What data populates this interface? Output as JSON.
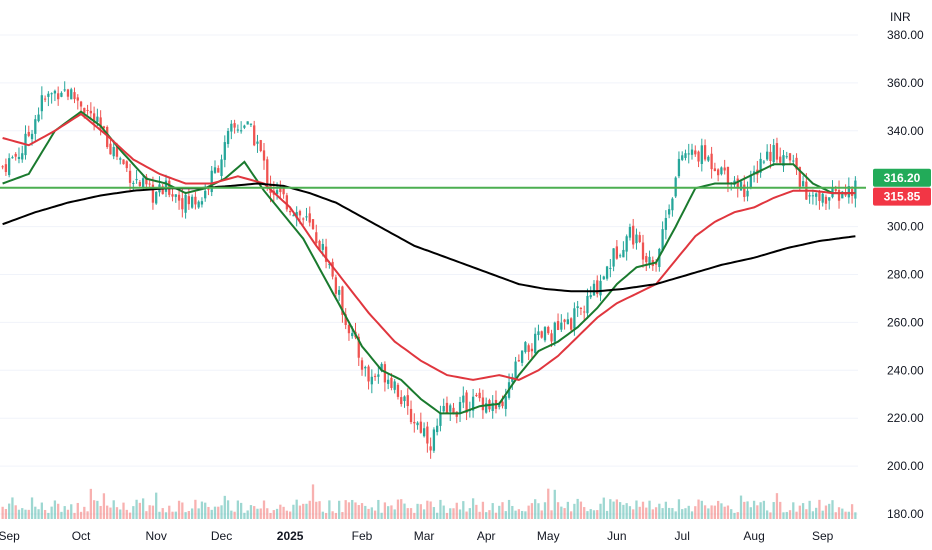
{
  "chart_data": {
    "type": "candlestick",
    "currency": "INR",
    "ylim": [
      175,
      385
    ],
    "y_ticks": [
      "180.00",
      "200.00",
      "220.00",
      "240.00",
      "260.00",
      "280.00",
      "300.00",
      "320.00",
      "340.00",
      "360.00",
      "380.00"
    ],
    "x_labels": [
      {
        "label": "Sep",
        "bar": 2,
        "bold": false
      },
      {
        "label": "Oct",
        "bar": 24,
        "bold": false
      },
      {
        "label": "Nov",
        "bar": 47,
        "bold": false
      },
      {
        "label": "Dec",
        "bar": 67,
        "bold": false
      },
      {
        "label": "2025",
        "bar": 88,
        "bold": true
      },
      {
        "label": "Feb",
        "bar": 110,
        "bold": false
      },
      {
        "label": "Mar",
        "bar": 129,
        "bold": false
      },
      {
        "label": "Apr",
        "bar": 148,
        "bold": false
      },
      {
        "label": "May",
        "bar": 167,
        "bold": false
      },
      {
        "label": "Jun",
        "bar": 188,
        "bold": false
      },
      {
        "label": "Jul",
        "bar": 208,
        "bold": false
      },
      {
        "label": "Aug",
        "bar": 230,
        "bold": false
      },
      {
        "label": "Sep",
        "bar": 251,
        "bold": false
      }
    ],
    "num_bars": 262,
    "price_path": [
      [
        0,
        325
      ],
      [
        6,
        332
      ],
      [
        12,
        352
      ],
      [
        18,
        358
      ],
      [
        24,
        352
      ],
      [
        30,
        340
      ],
      [
        34,
        332
      ],
      [
        40,
        320
      ],
      [
        46,
        313
      ],
      [
        51,
        316
      ],
      [
        56,
        310
      ],
      [
        61,
        312
      ],
      [
        66,
        326
      ],
      [
        70,
        340
      ],
      [
        74,
        343
      ],
      [
        78,
        335
      ],
      [
        82,
        316
      ],
      [
        87,
        310
      ],
      [
        93,
        302
      ],
      [
        99,
        288
      ],
      [
        103,
        270
      ],
      [
        108,
        250
      ],
      [
        112,
        236
      ],
      [
        116,
        240
      ],
      [
        120,
        235
      ],
      [
        124,
        222
      ],
      [
        129,
        215
      ],
      [
        131,
        210
      ],
      [
        135,
        222
      ],
      [
        140,
        225
      ],
      [
        146,
        228
      ],
      [
        150,
        225
      ],
      [
        153,
        222
      ],
      [
        156,
        238
      ],
      [
        160,
        248
      ],
      [
        166,
        255
      ],
      [
        172,
        258
      ],
      [
        178,
        266
      ],
      [
        183,
        278
      ],
      [
        188,
        290
      ],
      [
        192,
        298
      ],
      [
        196,
        290
      ],
      [
        200,
        286
      ],
      [
        204,
        310
      ],
      [
        208,
        330
      ],
      [
        214,
        330
      ],
      [
        219,
        325
      ],
      [
        225,
        318
      ],
      [
        228,
        315
      ],
      [
        232,
        328
      ],
      [
        236,
        332
      ],
      [
        240,
        328
      ],
      [
        243,
        324
      ],
      [
        246,
        312
      ],
      [
        249,
        311
      ],
      [
        253,
        312
      ],
      [
        258,
        314
      ],
      [
        261,
        316
      ]
    ],
    "current_price": 316.2,
    "horizontal_level": 316.2,
    "moving_averages": [
      {
        "period_label": "short",
        "color": "#1a7a2e",
        "points": [
          [
            0,
            318
          ],
          [
            8,
            322
          ],
          [
            16,
            340
          ],
          [
            24,
            348
          ],
          [
            30,
            342
          ],
          [
            36,
            332
          ],
          [
            44,
            320
          ],
          [
            50,
            318
          ],
          [
            56,
            314
          ],
          [
            62,
            316
          ],
          [
            68,
            320
          ],
          [
            74,
            327
          ],
          [
            80,
            315
          ],
          [
            86,
            305
          ],
          [
            92,
            295
          ],
          [
            98,
            280
          ],
          [
            104,
            265
          ],
          [
            110,
            250
          ],
          [
            116,
            240
          ],
          [
            122,
            236
          ],
          [
            128,
            228
          ],
          [
            134,
            222
          ],
          [
            140,
            222
          ],
          [
            146,
            225
          ],
          [
            152,
            226
          ],
          [
            158,
            238
          ],
          [
            164,
            248
          ],
          [
            170,
            252
          ],
          [
            176,
            258
          ],
          [
            182,
            266
          ],
          [
            188,
            276
          ],
          [
            194,
            283
          ],
          [
            200,
            285
          ],
          [
            206,
            300
          ],
          [
            212,
            316
          ],
          [
            218,
            318
          ],
          [
            224,
            318
          ],
          [
            230,
            322
          ],
          [
            236,
            326
          ],
          [
            242,
            326
          ],
          [
            248,
            318
          ],
          [
            254,
            314
          ],
          [
            261,
            314
          ]
        ]
      },
      {
        "period_label": "medium",
        "color": "#e0363e",
        "points": [
          [
            0,
            337
          ],
          [
            8,
            334
          ],
          [
            16,
            340
          ],
          [
            24,
            347
          ],
          [
            32,
            338
          ],
          [
            40,
            328
          ],
          [
            48,
            322
          ],
          [
            56,
            318
          ],
          [
            64,
            318
          ],
          [
            72,
            321
          ],
          [
            80,
            318
          ],
          [
            88,
            308
          ],
          [
            96,
            292
          ],
          [
            104,
            278
          ],
          [
            112,
            264
          ],
          [
            120,
            252
          ],
          [
            128,
            244
          ],
          [
            136,
            238
          ],
          [
            144,
            236
          ],
          [
            152,
            238
          ],
          [
            158,
            236
          ],
          [
            164,
            240
          ],
          [
            170,
            246
          ],
          [
            176,
            254
          ],
          [
            182,
            262
          ],
          [
            188,
            268
          ],
          [
            194,
            272
          ],
          [
            200,
            276
          ],
          [
            206,
            286
          ],
          [
            212,
            296
          ],
          [
            218,
            302
          ],
          [
            224,
            306
          ],
          [
            230,
            308
          ],
          [
            236,
            312
          ],
          [
            242,
            315
          ],
          [
            248,
            315
          ],
          [
            254,
            314
          ],
          [
            261,
            314
          ]
        ]
      },
      {
        "period_label": "long",
        "color": "#000000",
        "points": [
          [
            0,
            301
          ],
          [
            10,
            306
          ],
          [
            20,
            310
          ],
          [
            30,
            313
          ],
          [
            40,
            315
          ],
          [
            50,
            316
          ],
          [
            60,
            316
          ],
          [
            70,
            317
          ],
          [
            78,
            318
          ],
          [
            86,
            317
          ],
          [
            94,
            314
          ],
          [
            102,
            310
          ],
          [
            110,
            304
          ],
          [
            118,
            298
          ],
          [
            126,
            292
          ],
          [
            134,
            288
          ],
          [
            142,
            284
          ],
          [
            150,
            280
          ],
          [
            158,
            276
          ],
          [
            166,
            274
          ],
          [
            174,
            273
          ],
          [
            182,
            273
          ],
          [
            190,
            274
          ],
          [
            200,
            276
          ],
          [
            210,
            280
          ],
          [
            220,
            284
          ],
          [
            230,
            287
          ],
          [
            240,
            291
          ],
          [
            250,
            294
          ],
          [
            261,
            296
          ]
        ]
      }
    ],
    "price_labels": [
      {
        "value": "316.20",
        "color": "#22ab59"
      },
      {
        "value": "315.85",
        "color": "#f23645"
      }
    ],
    "candle_colors": {
      "up": "#26a69a",
      "down": "#ef5350"
    }
  }
}
